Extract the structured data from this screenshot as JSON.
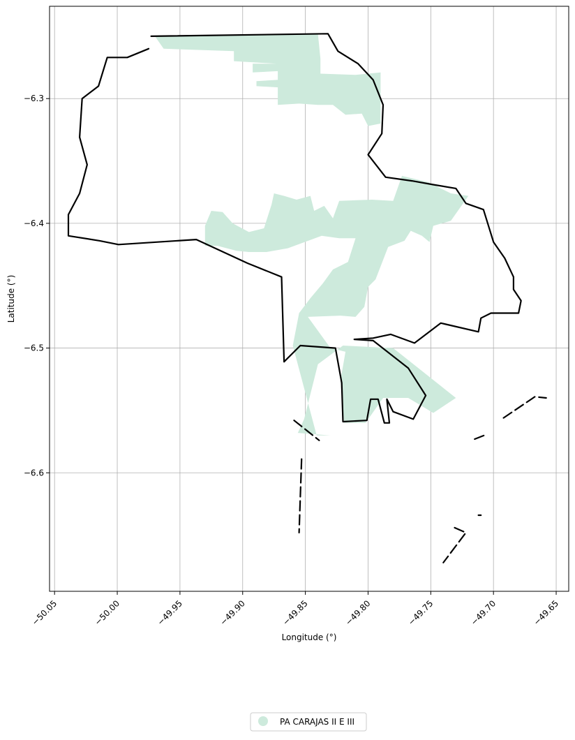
{
  "map": {
    "x_axis": {
      "label": "Longitude (°)",
      "ticks": [
        {
          "value": -50.05,
          "label": "−50.05"
        },
        {
          "value": -50.0,
          "label": "−50.00"
        },
        {
          "value": -49.95,
          "label": "−49.95"
        },
        {
          "value": -49.9,
          "label": "−49.90"
        },
        {
          "value": -49.85,
          "label": "−49.85"
        },
        {
          "value": -49.8,
          "label": "−49.80"
        },
        {
          "value": -49.75,
          "label": "−49.75"
        },
        {
          "value": -49.7,
          "label": "−49.70"
        },
        {
          "value": -49.65,
          "label": "−49.65"
        }
      ],
      "range": [
        -50.054,
        -49.64
      ]
    },
    "y_axis": {
      "label": "Latitude (°)",
      "ticks": [
        {
          "value": -6.3,
          "label": "−6.3"
        },
        {
          "value": -6.4,
          "label": "−6.4"
        },
        {
          "value": -6.5,
          "label": "−6.5"
        },
        {
          "value": -6.6,
          "label": "−6.6"
        }
      ],
      "range": [
        -6.695,
        -6.226
      ]
    },
    "grid": true,
    "legend": {
      "placement": "bottom-center",
      "entries": [
        {
          "label": "PA CARAJAS II E III",
          "color": "#cdeadc"
        }
      ]
    },
    "colors": {
      "settlement_fill": "#cdeadc",
      "boundary_stroke": "#000000",
      "grid": "#b0b0b0"
    },
    "layers": {
      "settlement_area": {
        "name": "PA CARAJAS II E III",
        "polygons": [
          [
            [
              -49.97,
              -6.25
            ],
            [
              -49.84,
              -6.248
            ],
            [
              -49.838,
              -6.268
            ],
            [
              -49.838,
              -6.28
            ],
            [
              -49.81,
              -6.281
            ],
            [
              -49.79,
              -6.279
            ],
            [
              -49.79,
              -6.32
            ],
            [
              -49.8,
              -6.322
            ],
            [
              -49.805,
              -6.312
            ],
            [
              -49.818,
              -6.313
            ],
            [
              -49.828,
              -6.305
            ],
            [
              -49.84,
              -6.305
            ],
            [
              -49.855,
              -6.304
            ],
            [
              -49.872,
              -6.305
            ],
            [
              -49.872,
              -6.291
            ],
            [
              -49.889,
              -6.29
            ],
            [
              -49.889,
              -6.286
            ],
            [
              -49.872,
              -6.285
            ],
            [
              -49.872,
              -6.278
            ],
            [
              -49.892,
              -6.279
            ],
            [
              -49.892,
              -6.272
            ],
            [
              -49.873,
              -6.272
            ],
            [
              -49.907,
              -6.27
            ],
            [
              -49.907,
              -6.262
            ],
            [
              -49.963,
              -6.26
            ]
          ],
          [
            [
              -49.797,
              -6.381
            ],
            [
              -49.78,
              -6.382
            ],
            [
              -49.773,
              -6.362
            ],
            [
              -49.752,
              -6.367
            ],
            [
              -49.734,
              -6.376
            ],
            [
              -49.72,
              -6.378
            ],
            [
              -49.734,
              -6.398
            ],
            [
              -49.748,
              -6.402
            ],
            [
              -49.751,
              -6.415
            ],
            [
              -49.757,
              -6.41
            ],
            [
              -49.766,
              -6.406
            ],
            [
              -49.771,
              -6.414
            ],
            [
              -49.784,
              -6.419
            ],
            [
              -49.794,
              -6.445
            ],
            [
              -49.8,
              -6.451
            ],
            [
              -49.803,
              -6.467
            ],
            [
              -49.81,
              -6.475
            ],
            [
              -49.822,
              -6.474
            ],
            [
              -49.848,
              -6.475
            ],
            [
              -49.83,
              -6.5
            ],
            [
              -49.818,
              -6.503
            ],
            [
              -49.822,
              -6.526
            ],
            [
              -49.819,
              -6.56
            ],
            [
              -49.802,
              -6.56
            ],
            [
              -49.788,
              -6.54
            ],
            [
              -49.783,
              -6.54
            ],
            [
              -49.768,
              -6.54
            ],
            [
              -49.748,
              -6.552
            ],
            [
              -49.73,
              -6.54
            ],
            [
              -49.78,
              -6.5
            ],
            [
              -49.82,
              -6.498
            ],
            [
              -49.84,
              -6.513
            ],
            [
              -49.851,
              -6.557
            ],
            [
              -49.856,
              -6.568
            ],
            [
              -49.83,
              -6.57
            ],
            [
              -49.841,
              -6.57
            ],
            [
              -49.86,
              -6.498
            ],
            [
              -49.855,
              -6.472
            ],
            [
              -49.846,
              -6.46
            ],
            [
              -49.836,
              -6.448
            ],
            [
              -49.828,
              -6.437
            ],
            [
              -49.816,
              -6.431
            ],
            [
              -49.81,
              -6.412
            ],
            [
              -49.823,
              -6.412
            ],
            [
              -49.837,
              -6.41
            ],
            [
              -49.864,
              -6.42
            ],
            [
              -49.881,
              -6.423
            ],
            [
              -49.895,
              -6.423
            ],
            [
              -49.905,
              -6.422
            ],
            [
              -49.92,
              -6.418
            ],
            [
              -49.93,
              -6.418
            ],
            [
              -49.93,
              -6.402
            ],
            [
              -49.925,
              -6.39
            ],
            [
              -49.916,
              -6.391
            ],
            [
              -49.908,
              -6.4
            ],
            [
              -49.895,
              -6.407
            ],
            [
              -49.883,
              -6.404
            ],
            [
              -49.877,
              -6.385
            ],
            [
              -49.875,
              -6.376
            ],
            [
              -49.867,
              -6.378
            ],
            [
              -49.857,
              -6.381
            ],
            [
              -49.846,
              -6.378
            ],
            [
              -49.843,
              -6.39
            ],
            [
              -49.835,
              -6.386
            ],
            [
              -49.828,
              -6.396
            ],
            [
              -49.823,
              -6.382
            ]
          ]
        ]
      },
      "municipal_boundary": {
        "lines": [
          [
            [
              -49.973,
              -6.25
            ],
            [
              -49.832,
              -6.248
            ],
            [
              -49.824,
              -6.262
            ],
            [
              -49.808,
              -6.272
            ],
            [
              -49.796,
              -6.285
            ],
            [
              -49.788,
              -6.305
            ],
            [
              -49.789,
              -6.328
            ],
            [
              -49.8,
              -6.345
            ],
            [
              -49.786,
              -6.363
            ],
            [
              -49.765,
              -6.366
            ],
            [
              -49.748,
              -6.369
            ],
            [
              -49.73,
              -6.372
            ],
            [
              -49.722,
              -6.384
            ],
            [
              -49.708,
              -6.389
            ],
            [
              -49.7,
              -6.415
            ],
            [
              -49.691,
              -6.428
            ],
            [
              -49.684,
              -6.443
            ],
            [
              -49.684,
              -6.453
            ],
            [
              -49.678,
              -6.462
            ],
            [
              -49.68,
              -6.472
            ],
            [
              -49.702,
              -6.472
            ],
            [
              -49.71,
              -6.476
            ],
            [
              -49.712,
              -6.487
            ],
            [
              -49.742,
              -6.48
            ],
            [
              -49.763,
              -6.496
            ],
            [
              -49.782,
              -6.489
            ],
            [
              -49.796,
              -6.492
            ],
            [
              -49.811,
              -6.493
            ],
            [
              -49.796,
              -6.494
            ],
            [
              -49.768,
              -6.516
            ],
            [
              -49.754,
              -6.538
            ],
            [
              -49.764,
              -6.557
            ],
            [
              -49.78,
              -6.551
            ],
            [
              -49.785,
              -6.541
            ],
            [
              -49.783,
              -6.56
            ],
            [
              -49.787,
              -6.56
            ],
            [
              -49.792,
              -6.541
            ],
            [
              -49.798,
              -6.541
            ],
            [
              -49.801,
              -6.558
            ],
            [
              -49.82,
              -6.559
            ],
            [
              -49.821,
              -6.528
            ],
            [
              -49.826,
              -6.5
            ],
            [
              -49.854,
              -6.498
            ],
            [
              -49.867,
              -6.511
            ],
            [
              -49.869,
              -6.443
            ],
            [
              -49.896,
              -6.432
            ],
            [
              -49.937,
              -6.413
            ],
            [
              -49.999,
              -6.417
            ],
            [
              -50.014,
              -6.414
            ],
            [
              -50.039,
              -6.41
            ],
            [
              -50.039,
              -6.393
            ],
            [
              -50.03,
              -6.376
            ],
            [
              -50.024,
              -6.353
            ],
            [
              -50.03,
              -6.331
            ],
            [
              -50.028,
              -6.3
            ],
            [
              -50.015,
              -6.29
            ],
            [
              -50.008,
              -6.267
            ],
            [
              -49.992,
              -6.267
            ],
            [
              -49.975,
              -6.26
            ]
          ]
        ],
        "fragments": [
          [
            [
              -49.859,
              -6.558
            ],
            [
              -49.839,
              -6.574
            ]
          ],
          [
            [
              -49.853,
              -6.589
            ],
            [
              -49.855,
              -6.648
            ]
          ],
          [
            [
              -49.715,
              -6.573
            ],
            [
              -49.705,
              -6.569
            ]
          ],
          [
            [
              -49.692,
              -6.556
            ],
            [
              -49.667,
              -6.539
            ],
            [
              -49.658,
              -6.54
            ]
          ],
          [
            [
              -49.71,
              -6.634
            ],
            [
              -49.712,
              -6.634
            ]
          ],
          [
            [
              -49.731,
              -6.644
            ],
            [
              -49.722,
              -6.648
            ],
            [
              -49.74,
              -6.672
            ]
          ]
        ]
      }
    }
  }
}
